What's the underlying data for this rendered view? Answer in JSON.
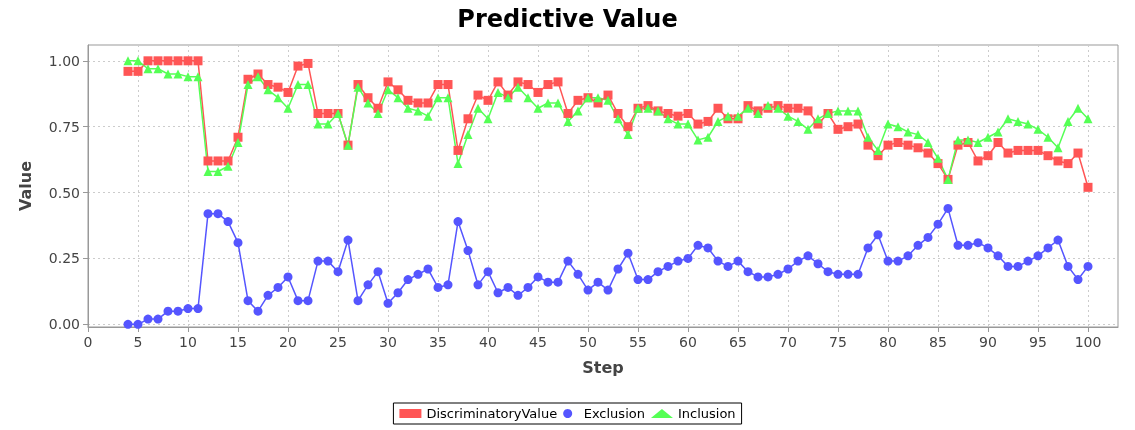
{
  "chart_data": {
    "type": "line",
    "title": "Predictive Value",
    "xlabel": "Step",
    "ylabel": "Value",
    "x": [
      4,
      5,
      6,
      7,
      8,
      9,
      10,
      11,
      12,
      13,
      14,
      15,
      16,
      17,
      18,
      19,
      20,
      21,
      22,
      23,
      24,
      25,
      26,
      27,
      28,
      29,
      30,
      31,
      32,
      33,
      34,
      35,
      36,
      37,
      38,
      39,
      40,
      41,
      42,
      43,
      44,
      45,
      46,
      47,
      48,
      49,
      50,
      51,
      52,
      53,
      54,
      55,
      56,
      57,
      58,
      59,
      60,
      61,
      62,
      63,
      64,
      65,
      66,
      67,
      68,
      69,
      70,
      71,
      72,
      73,
      74,
      75,
      76,
      77,
      78,
      79,
      80,
      81,
      82,
      83,
      84,
      85,
      86,
      87,
      88,
      89,
      90,
      91,
      92,
      93,
      94,
      95,
      96,
      97,
      98,
      99,
      100
    ],
    "series": [
      {
        "name": "DiscriminatoryValue",
        "color": "#ff5555",
        "marker": "square",
        "values": [
          0.96,
          0.96,
          1.0,
          1.0,
          1.0,
          1.0,
          1.0,
          1.0,
          0.62,
          0.62,
          0.62,
          0.71,
          0.93,
          0.95,
          0.91,
          0.9,
          0.88,
          0.98,
          0.99,
          0.8,
          0.8,
          0.8,
          0.68,
          0.91,
          0.86,
          0.82,
          0.92,
          0.89,
          0.85,
          0.84,
          0.84,
          0.91,
          0.91,
          0.66,
          0.78,
          0.87,
          0.85,
          0.92,
          0.87,
          0.92,
          0.91,
          0.88,
          0.91,
          0.92,
          0.8,
          0.85,
          0.86,
          0.84,
          0.87,
          0.8,
          0.75,
          0.82,
          0.83,
          0.81,
          0.8,
          0.79,
          0.8,
          0.76,
          0.77,
          0.82,
          0.78,
          0.78,
          0.83,
          0.81,
          0.82,
          0.83,
          0.82,
          0.82,
          0.81,
          0.76,
          0.8,
          0.74,
          0.75,
          0.76,
          0.68,
          0.64,
          0.68,
          0.69,
          0.68,
          0.67,
          0.65,
          0.61,
          0.55,
          0.68,
          0.69,
          0.62,
          0.64,
          0.69,
          0.65,
          0.66,
          0.66,
          0.66,
          0.64,
          0.62,
          0.61,
          0.65,
          0.52
        ]
      },
      {
        "name": "Exclusion",
        "color": "#5555ff",
        "marker": "circle",
        "values": [
          0.0,
          0.0,
          0.02,
          0.02,
          0.05,
          0.05,
          0.06,
          0.06,
          0.42,
          0.42,
          0.39,
          0.31,
          0.09,
          0.05,
          0.11,
          0.14,
          0.18,
          0.09,
          0.09,
          0.24,
          0.24,
          0.2,
          0.32,
          0.09,
          0.15,
          0.2,
          0.08,
          0.12,
          0.17,
          0.19,
          0.21,
          0.14,
          0.15,
          0.39,
          0.28,
          0.15,
          0.2,
          0.12,
          0.14,
          0.11,
          0.14,
          0.18,
          0.16,
          0.16,
          0.24,
          0.19,
          0.13,
          0.16,
          0.13,
          0.21,
          0.27,
          0.17,
          0.17,
          0.2,
          0.22,
          0.24,
          0.25,
          0.3,
          0.29,
          0.24,
          0.22,
          0.24,
          0.2,
          0.18,
          0.18,
          0.19,
          0.21,
          0.24,
          0.26,
          0.23,
          0.2,
          0.19,
          0.19,
          0.19,
          0.29,
          0.34,
          0.24,
          0.24,
          0.26,
          0.3,
          0.33,
          0.38,
          0.44,
          0.3,
          0.3,
          0.31,
          0.29,
          0.26,
          0.22,
          0.22,
          0.24,
          0.26,
          0.29,
          0.32,
          0.22,
          0.17,
          0.22
        ]
      },
      {
        "name": "Inclusion",
        "color": "#55ff55",
        "marker": "triangle",
        "values": [
          1.0,
          1.0,
          0.97,
          0.97,
          0.95,
          0.95,
          0.94,
          0.94,
          0.58,
          0.58,
          0.6,
          0.69,
          0.91,
          0.94,
          0.89,
          0.86,
          0.82,
          0.91,
          0.91,
          0.76,
          0.76,
          0.8,
          0.68,
          0.9,
          0.84,
          0.8,
          0.89,
          0.86,
          0.82,
          0.81,
          0.79,
          0.86,
          0.86,
          0.61,
          0.72,
          0.82,
          0.78,
          0.88,
          0.86,
          0.9,
          0.86,
          0.82,
          0.84,
          0.84,
          0.77,
          0.81,
          0.86,
          0.86,
          0.85,
          0.78,
          0.72,
          0.82,
          0.82,
          0.81,
          0.78,
          0.76,
          0.76,
          0.7,
          0.71,
          0.77,
          0.79,
          0.79,
          0.82,
          0.8,
          0.83,
          0.82,
          0.79,
          0.77,
          0.74,
          0.78,
          0.8,
          0.81,
          0.81,
          0.81,
          0.71,
          0.66,
          0.76,
          0.75,
          0.73,
          0.72,
          0.69,
          0.63,
          0.55,
          0.7,
          0.7,
          0.69,
          0.71,
          0.73,
          0.78,
          0.77,
          0.76,
          0.74,
          0.71,
          0.67,
          0.77,
          0.82,
          0.78
        ]
      }
    ],
    "xlim": [
      0,
      103
    ],
    "xticks": [
      0,
      5,
      10,
      15,
      20,
      25,
      30,
      35,
      40,
      45,
      50,
      55,
      60,
      65,
      70,
      75,
      80,
      85,
      90,
      95,
      100
    ],
    "ylim": [
      -0.01,
      1.06
    ],
    "yticks": [
      {
        "value": 0,
        "label": "0.00"
      },
      {
        "value": 0.25,
        "label": "0.25"
      },
      {
        "value": 0.5,
        "label": "0.50"
      },
      {
        "value": 0.75,
        "label": "0.75"
      },
      {
        "value": 1,
        "label": "1.00"
      }
    ],
    "grid": true,
    "legend": "bottom",
    "line_style": "solid"
  }
}
